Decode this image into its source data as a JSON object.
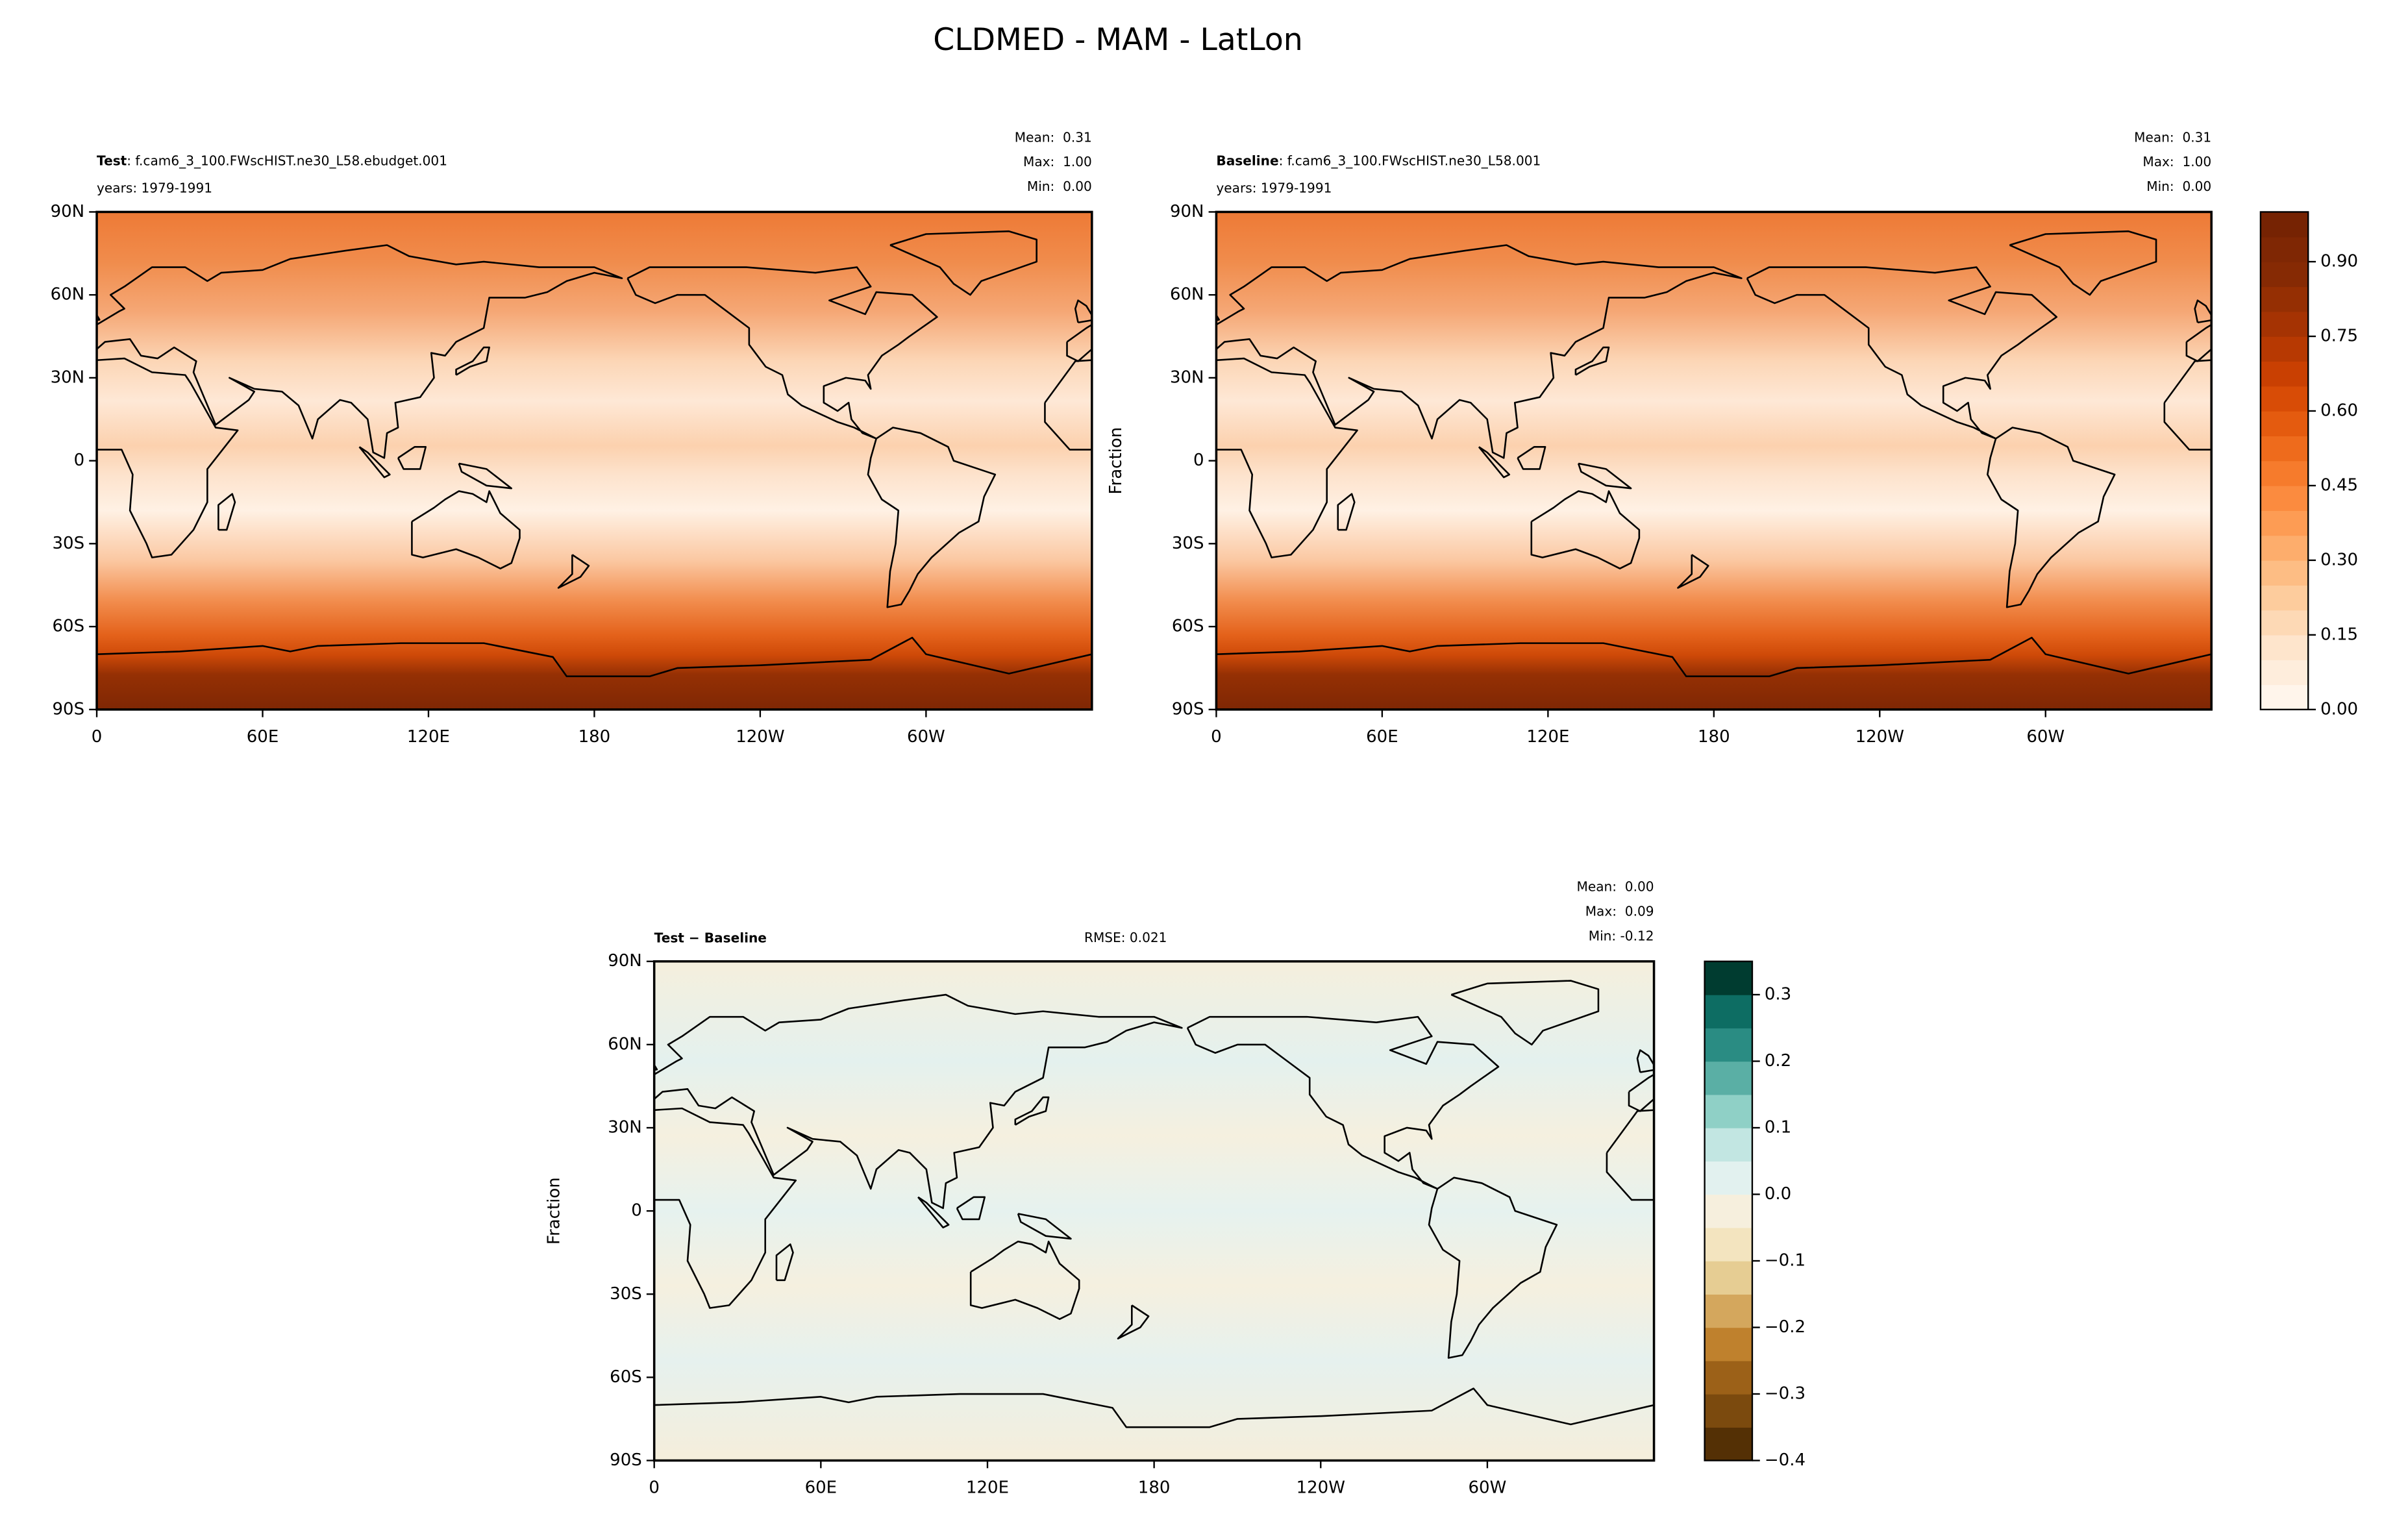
{
  "title": "CLDMED - MAM - LatLon",
  "chart_data": [
    {
      "type": "contour-map",
      "case_label": "Test",
      "case_name": ": f.cam6_3_100.FWscHIST.ne30_L58.ebudget.001",
      "years": "years: 1979-1991",
      "stats": [
        "Mean:  0.31",
        "Max:  1.00",
        "Min:  0.00"
      ],
      "xlim": [
        0,
        360
      ],
      "xticks": [
        0,
        {
          "value": 60,
          "label": "60E"
        },
        {
          "value": 120,
          "label": "120E"
        },
        180,
        {
          "value": 240,
          "label": "120W"
        },
        {
          "value": 300,
          "label": "60W"
        }
      ],
      "ylim": [
        -90,
        90
      ],
      "yticks": [
        {
          "value": -90,
          "label": "90S"
        },
        {
          "value": -60,
          "label": "60S"
        },
        {
          "value": -30,
          "label": "30S"
        },
        0,
        {
          "value": 30,
          "label": "30N"
        },
        {
          "value": 60,
          "label": "60N"
        },
        {
          "value": 90,
          "label": "90N"
        }
      ]
    },
    {
      "type": "contour-map",
      "case_label": "Baseline",
      "case_name": ": f.cam6_3_100.FWscHIST.ne30_L58.001",
      "years": "years: 1979-1991",
      "stats": [
        "Mean:  0.31",
        "Max:  1.00",
        "Min:  0.00"
      ],
      "ylabel": "Fraction",
      "xlim": [
        0,
        360
      ],
      "xticks": [
        0,
        {
          "value": 60,
          "label": "60E"
        },
        {
          "value": 120,
          "label": "120E"
        },
        180,
        {
          "value": 240,
          "label": "120W"
        },
        {
          "value": 300,
          "label": "60W"
        }
      ],
      "ylim": [
        -90,
        90
      ],
      "yticks": [
        {
          "value": -90,
          "label": "90S"
        },
        {
          "value": -60,
          "label": "60S"
        },
        {
          "value": -30,
          "label": "30S"
        },
        0,
        {
          "value": 30,
          "label": "30N"
        },
        {
          "value": 60,
          "label": "60N"
        },
        {
          "value": 90,
          "label": "90N"
        }
      ],
      "colorbar": {
        "lim": [
          0,
          1
        ],
        "ticks": [
          {
            "value": 0,
            "label": "0.00"
          },
          0.15,
          {
            "value": 0.3,
            "label": "0.30"
          },
          0.45,
          {
            "value": 0.6,
            "label": "0.60"
          },
          0.75,
          {
            "value": 0.9,
            "label": "0.90"
          }
        ],
        "colors": [
          "#fff5eb",
          "#feeddc",
          "#fee5cc",
          "#fdd9b5",
          "#fdcc9d",
          "#fdbd84",
          "#fdad6c",
          "#fd9c54",
          "#fb8b3f",
          "#f67b2c",
          "#ee6b1c",
          "#e45b0f",
          "#d84c06",
          "#c94002",
          "#b73902",
          "#a53303",
          "#952f03",
          "#862a04",
          "#7f2704",
          "#762303"
        ]
      }
    },
    {
      "type": "contour-map",
      "case_label": "Test − Baseline",
      "rmse": "RMSE: 0.021",
      "stats": [
        "Mean:  0.00",
        "Max:  0.09",
        "Min: -0.12"
      ],
      "ylabel": "Fraction",
      "xlim": [
        0,
        360
      ],
      "xticks": [
        0,
        {
          "value": 60,
          "label": "60E"
        },
        {
          "value": 120,
          "label": "120E"
        },
        180,
        {
          "value": 240,
          "label": "120W"
        },
        {
          "value": 300,
          "label": "60W"
        }
      ],
      "ylim": [
        -90,
        90
      ],
      "yticks": [
        {
          "value": -90,
          "label": "90S"
        },
        {
          "value": -60,
          "label": "60S"
        },
        {
          "value": -30,
          "label": "30S"
        },
        0,
        {
          "value": 30,
          "label": "30N"
        },
        {
          "value": 60,
          "label": "60N"
        },
        {
          "value": 90,
          "label": "90N"
        }
      ],
      "colorbar": {
        "lim": [
          -0.4,
          0.35
        ],
        "ticks": [
          {
            "value": 0.3,
            "label": "0.3"
          },
          0.2,
          0.1,
          {
            "value": 0,
            "label": "0.0"
          },
          {
            "value": -0.1,
            "label": "−0.1"
          },
          {
            "value": -0.2,
            "label": "−0.2"
          },
          {
            "value": -0.3,
            "label": "−0.3"
          },
          {
            "value": -0.4,
            "label": "−0.4"
          }
        ],
        "colors": [
          "#543005",
          "#7b4a0e",
          "#9c6118",
          "#bf812d",
          "#d4a75d",
          "#e6cd93",
          "#f3e4bf",
          "#f6efdd",
          "#e2f1ef",
          "#c2e6e2",
          "#8fd0c6",
          "#5aafa5",
          "#2a8c83",
          "#0d6d63",
          "#003c30"
        ]
      }
    }
  ]
}
